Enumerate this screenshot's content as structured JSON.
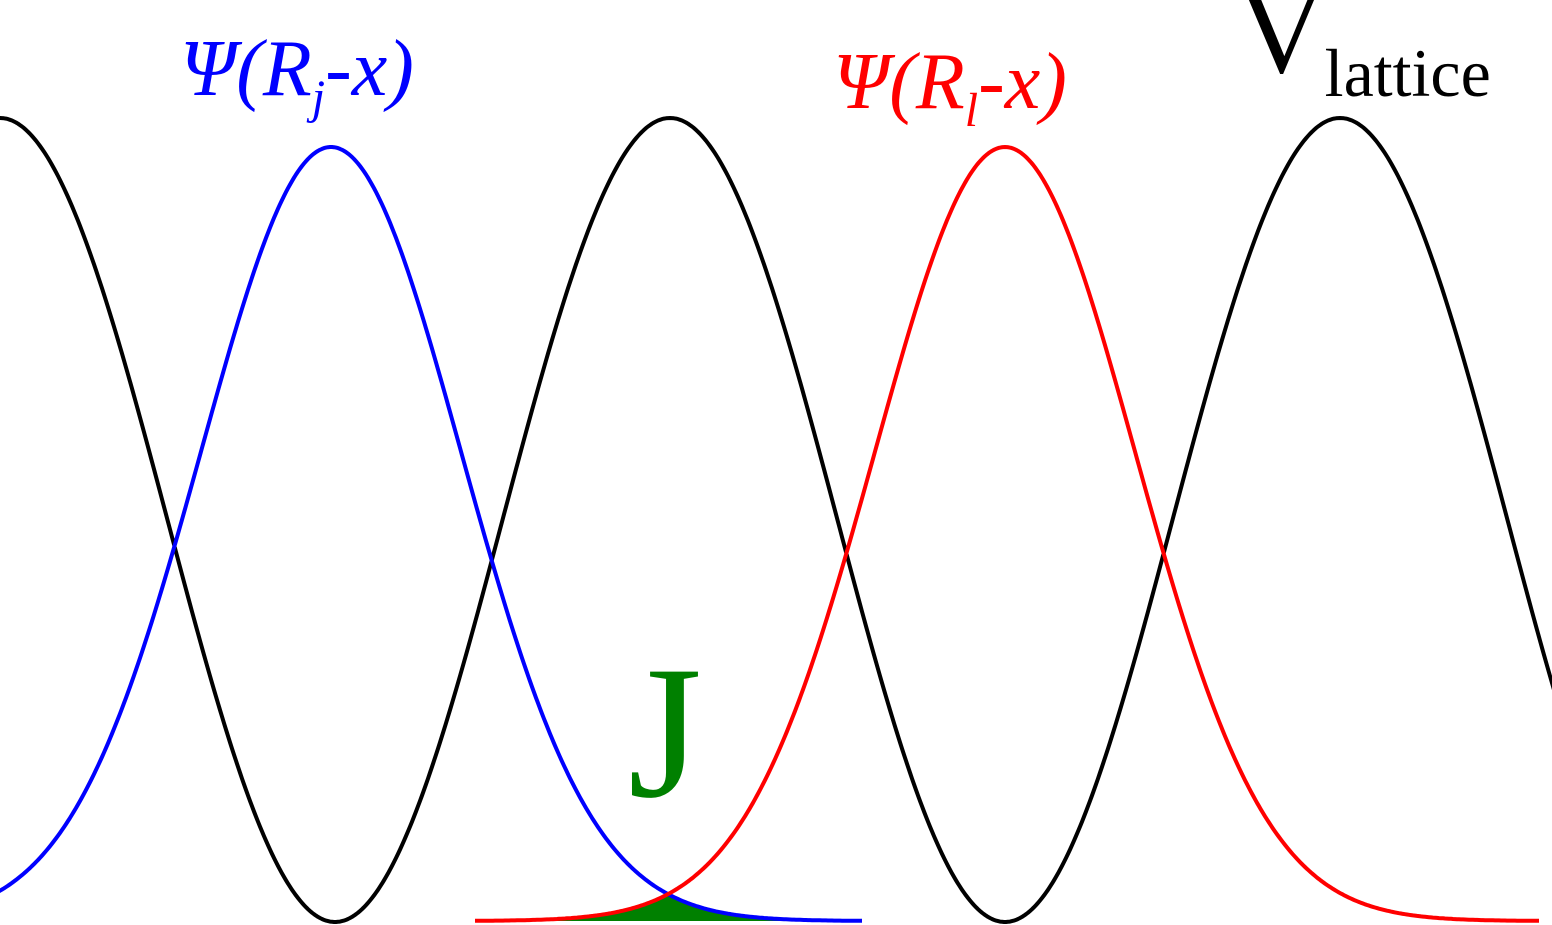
{
  "colors": {
    "lattice": "#000000",
    "psi_j": "#0000ff",
    "psi_l": "#ff0000",
    "overlap": "#008000",
    "background": "#ffffff"
  },
  "labels": {
    "psi_j": {
      "prefix": "Ψ(R",
      "sub": "j",
      "suffix": "-x)"
    },
    "psi_l": {
      "prefix": "Ψ(R",
      "sub": "l",
      "suffix": "-x)"
    },
    "lattice": {
      "main": "V",
      "sub": "lattice"
    },
    "overlap": "J"
  }
}
